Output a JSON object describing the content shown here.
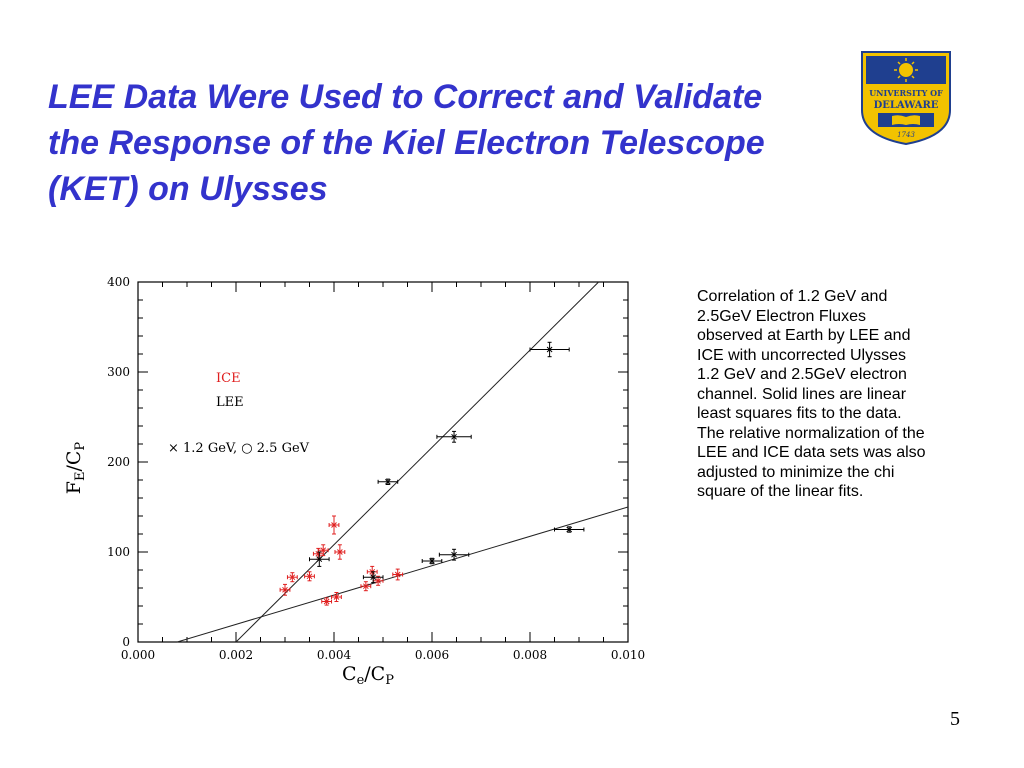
{
  "slide": {
    "title": "LEE Data Were Used to Correct and Validate the Response of the Kiel Electron Telescope (KET) on Ulysses",
    "caption": "Correlation of 1.2 GeV and 2.5GeV Electron Fluxes observed at Earth by LEE and ICE with uncorrected Ulysses 1.2 GeV and 2.5GeV electron channel. Solid lines are linear least squares fits to the data. The relative normalization of the LEE and ICE data sets was also adjusted to minimize the chi square of the linear fits.",
    "number": "5"
  },
  "logo": {
    "text_line1": "UNIVERSITY OF",
    "text_line2": "DELAWARE",
    "year": "1743",
    "colors": {
      "navy": "#1f3f8f",
      "gold": "#f2c200"
    }
  },
  "chart_data": {
    "type": "scatter",
    "xlabel": "Ce/CP",
    "ylabel": "FE/CP",
    "xlim": [
      0.0,
      0.01
    ],
    "ylim": [
      0,
      400
    ],
    "x_ticks": [
      "0.000",
      "0.002",
      "0.004",
      "0.006",
      "0.008",
      "0.010"
    ],
    "y_ticks": [
      "0",
      "100",
      "200",
      "300",
      "400"
    ],
    "legend": {
      "placement": "upper-left",
      "ice": "ICE",
      "lee": "LEE",
      "symbols": "× 1.2 GeV,  ○ 2.5 GeV"
    },
    "colors": {
      "ICE": "#e02020",
      "LEE": "#000000"
    },
    "series": [
      {
        "name": "ICE",
        "points": [
          {
            "x": 0.003,
            "y": 58,
            "xerr": 0.0001,
            "yerr": 6
          },
          {
            "x": 0.00315,
            "y": 72,
            "xerr": 0.0001,
            "yerr": 5
          },
          {
            "x": 0.0035,
            "y": 73,
            "xerr": 0.0001,
            "yerr": 5
          },
          {
            "x": 0.00368,
            "y": 98,
            "xerr": 0.0001,
            "yerr": 6
          },
          {
            "x": 0.00378,
            "y": 102,
            "xerr": 0.0001,
            "yerr": 6
          },
          {
            "x": 0.004,
            "y": 130,
            "xerr": 0.0001,
            "yerr": 10
          },
          {
            "x": 0.00412,
            "y": 100,
            "xerr": 0.0001,
            "yerr": 8
          },
          {
            "x": 0.00385,
            "y": 45,
            "xerr": 0.0001,
            "yerr": 4
          },
          {
            "x": 0.00405,
            "y": 50,
            "xerr": 0.0001,
            "yerr": 5
          },
          {
            "x": 0.00465,
            "y": 62,
            "xerr": 0.0001,
            "yerr": 5
          },
          {
            "x": 0.00478,
            "y": 78,
            "xerr": 0.0001,
            "yerr": 6
          },
          {
            "x": 0.0049,
            "y": 68,
            "xerr": 0.0001,
            "yerr": 5
          },
          {
            "x": 0.0053,
            "y": 75,
            "xerr": 0.0001,
            "yerr": 6
          }
        ]
      },
      {
        "name": "LEE",
        "points": [
          {
            "x": 0.0037,
            "y": 92,
            "xerr": 0.0002,
            "yerr": 8
          },
          {
            "x": 0.0048,
            "y": 72,
            "xerr": 0.0002,
            "yerr": 6
          },
          {
            "x": 0.0051,
            "y": 178,
            "xerr": 0.0002,
            "yerr": 3
          },
          {
            "x": 0.006,
            "y": 90,
            "xerr": 0.0002,
            "yerr": 3
          },
          {
            "x": 0.00645,
            "y": 97,
            "xerr": 0.0003,
            "yerr": 6
          },
          {
            "x": 0.00645,
            "y": 228,
            "xerr": 0.00035,
            "yerr": 6
          },
          {
            "x": 0.0084,
            "y": 325,
            "xerr": 0.0004,
            "yerr": 8
          },
          {
            "x": 0.0088,
            "y": 125,
            "xerr": 0.0003,
            "yerr": 3
          }
        ]
      }
    ],
    "fit_lines": [
      {
        "name": "1.2 GeV fit",
        "x": [
          0.0008,
          0.01
        ],
        "y": [
          0,
          150
        ]
      },
      {
        "name": "2.5 GeV fit",
        "x": [
          0.002,
          0.0094
        ],
        "y": [
          0,
          400
        ]
      }
    ]
  }
}
